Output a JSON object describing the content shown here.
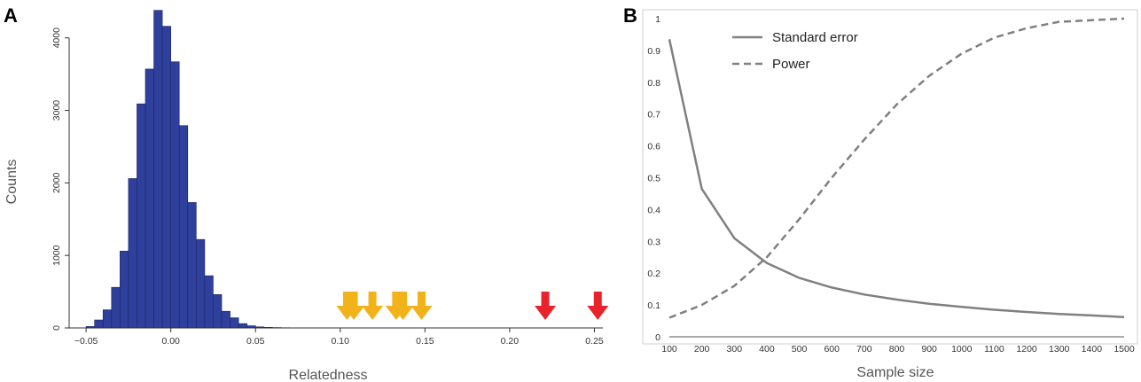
{
  "chart_data": [
    {
      "panel": "A",
      "type": "bar",
      "xlabel": "Relatedness",
      "ylabel": "Counts",
      "xlim": [
        -0.06,
        0.255
      ],
      "ylim": [
        0,
        4400
      ],
      "xticks": [
        -0.05,
        0.0,
        0.05,
        0.1,
        0.15,
        0.2,
        0.25
      ],
      "xtick_labels": [
        "−0.05",
        "0.00",
        "0.05",
        "0.10",
        "0.15",
        "0.20",
        "0.25"
      ],
      "yticks": [
        0,
        1000,
        2000,
        3000,
        4000
      ],
      "ytick_labels": [
        "0",
        "1000",
        "2000",
        "3000",
        "4000"
      ],
      "bin_width": 0.005,
      "bins": [
        {
          "x0": -0.05,
          "count": 20
        },
        {
          "x0": -0.045,
          "count": 110
        },
        {
          "x0": -0.04,
          "count": 250
        },
        {
          "x0": -0.035,
          "count": 560
        },
        {
          "x0": -0.03,
          "count": 1060
        },
        {
          "x0": -0.025,
          "count": 2060
        },
        {
          "x0": -0.02,
          "count": 3090
        },
        {
          "x0": -0.015,
          "count": 3570
        },
        {
          "x0": -0.01,
          "count": 4380
        },
        {
          "x0": -0.005,
          "count": 4160
        },
        {
          "x0": 0.0,
          "count": 3670
        },
        {
          "x0": 0.005,
          "count": 2790
        },
        {
          "x0": 0.01,
          "count": 1730
        },
        {
          "x0": 0.015,
          "count": 1220
        },
        {
          "x0": 0.02,
          "count": 720
        },
        {
          "x0": 0.025,
          "count": 460
        },
        {
          "x0": 0.03,
          "count": 230
        },
        {
          "x0": 0.035,
          "count": 140
        },
        {
          "x0": 0.04,
          "count": 60
        },
        {
          "x0": 0.045,
          "count": 30
        },
        {
          "x0": 0.05,
          "count": 15
        },
        {
          "x0": 0.055,
          "count": 8
        },
        {
          "x0": 0.06,
          "count": 5
        },
        {
          "x0": 0.065,
          "count": 3
        }
      ],
      "arrows": [
        {
          "x": 0.104,
          "color": "#f2b21a"
        },
        {
          "x": 0.108,
          "color": "#f2b21a"
        },
        {
          "x": 0.119,
          "color": "#f2b21a"
        },
        {
          "x": 0.133,
          "color": "#f2b21a"
        },
        {
          "x": 0.137,
          "color": "#f2b21a"
        },
        {
          "x": 0.148,
          "color": "#f2b21a"
        },
        {
          "x": 0.221,
          "color": "#e8232b"
        },
        {
          "x": 0.252,
          "color": "#e8232b"
        }
      ],
      "bar_color": "#2f3f9c"
    },
    {
      "panel": "B",
      "type": "line",
      "xlabel": "Sample size",
      "ylabel": "",
      "xlim": [
        100,
        1500
      ],
      "ylim": [
        0,
        1
      ],
      "xticks": [
        100,
        200,
        300,
        400,
        500,
        600,
        700,
        800,
        900,
        1000,
        1100,
        1200,
        1300,
        1400,
        1500
      ],
      "xtick_labels": [
        "100",
        "200",
        "300",
        "400",
        "500",
        "600",
        "700",
        "800",
        "900",
        "1000",
        "1100",
        "1200",
        "1300",
        "1400",
        "1500"
      ],
      "yticks": [
        0,
        0.1,
        0.2,
        0.3,
        0.4,
        0.5,
        0.6,
        0.7,
        0.8,
        0.9,
        1
      ],
      "ytick_labels": [
        "0",
        "0.1",
        "0.2",
        "0.3",
        "0.4",
        "0.5",
        "0.6",
        "0.7",
        "0.8",
        "0.9",
        "1"
      ],
      "x": [
        100,
        200,
        300,
        400,
        500,
        600,
        700,
        800,
        900,
        1000,
        1100,
        1200,
        1300,
        1400,
        1500
      ],
      "series": [
        {
          "name": "Standard error",
          "style": "solid",
          "values": [
            0.935,
            0.465,
            0.31,
            0.232,
            0.185,
            0.155,
            0.133,
            0.117,
            0.104,
            0.094,
            0.085,
            0.078,
            0.072,
            0.067,
            0.062
          ]
        },
        {
          "name": "Power",
          "style": "dashed",
          "values": [
            0.06,
            0.1,
            0.16,
            0.25,
            0.37,
            0.5,
            0.62,
            0.73,
            0.82,
            0.89,
            0.94,
            0.97,
            0.99,
            0.995,
            1.0
          ]
        }
      ],
      "line_color": "#808080",
      "legend_position": "top-left"
    }
  ],
  "panels": {
    "a_label": "A",
    "b_label": "B"
  }
}
